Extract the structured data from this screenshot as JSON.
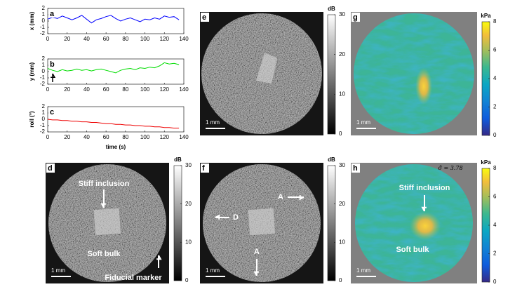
{
  "chart_data": [
    {
      "type": "line",
      "panel_label": "a",
      "y_label": "x (mm)",
      "x": [
        0,
        5,
        10,
        15,
        20,
        25,
        30,
        35,
        40,
        45,
        50,
        55,
        60,
        65,
        70,
        75,
        80,
        85,
        90,
        95,
        100,
        105,
        110,
        115,
        120,
        125,
        130,
        135
      ],
      "series": [
        {
          "color": "#0000ff",
          "values": [
            0.3,
            0.6,
            0.4,
            0.8,
            0.5,
            0.2,
            0.5,
            0.9,
            0.3,
            -0.3,
            0.2,
            0.4,
            0.7,
            0.9,
            0.4,
            0,
            0.3,
            0.5,
            0.2,
            -0.1,
            0.3,
            0.2,
            0.5,
            0.3,
            0.8,
            0.6,
            0.7,
            0.2
          ]
        }
      ],
      "xlim": [
        0,
        140
      ],
      "xticks": [
        0,
        20,
        40,
        60,
        80,
        100,
        120,
        140
      ],
      "ylim": [
        -2,
        2
      ],
      "yticks": [
        -2,
        -1,
        0,
        1,
        2
      ]
    },
    {
      "type": "line",
      "panel_label": "b",
      "y_label": "y (mm)",
      "x": [
        0,
        5,
        10,
        15,
        20,
        25,
        30,
        35,
        40,
        45,
        50,
        55,
        60,
        65,
        70,
        75,
        80,
        85,
        90,
        95,
        100,
        105,
        110,
        115,
        120,
        125,
        130,
        135
      ],
      "series": [
        {
          "color": "#00dd00",
          "values": [
            0.5,
            0.2,
            0,
            0.3,
            0.1,
            0.2,
            0.4,
            0.2,
            0.3,
            0.1,
            0.3,
            0.4,
            0.2,
            0,
            -0.2,
            0.2,
            0.4,
            0.5,
            0.3,
            0.6,
            0.5,
            0.7,
            0.6,
            0.9,
            1.4,
            1.2,
            1.3,
            1.1
          ]
        }
      ],
      "xlim": [
        0,
        140
      ],
      "xticks": [
        0,
        20,
        40,
        60,
        80,
        100,
        120,
        140
      ],
      "ylim": [
        -2,
        2
      ],
      "yticks": [
        -2,
        -1,
        0,
        1,
        2
      ]
    },
    {
      "type": "line",
      "panel_label": "c",
      "y_label": "roll (°)",
      "x_label": "time (s)",
      "x": [
        0,
        5,
        10,
        15,
        20,
        25,
        30,
        35,
        40,
        45,
        50,
        55,
        60,
        65,
        70,
        75,
        80,
        85,
        90,
        95,
        100,
        105,
        110,
        115,
        120,
        125,
        130,
        135
      ],
      "series": [
        {
          "color": "#ee0000",
          "values": [
            0,
            -0.1,
            -0.1,
            -0.2,
            -0.2,
            -0.3,
            -0.3,
            -0.4,
            -0.4,
            -0.5,
            -0.5,
            -0.6,
            -0.7,
            -0.7,
            -0.8,
            -0.8,
            -0.9,
            -0.9,
            -1,
            -1,
            -1.1,
            -1.1,
            -1.2,
            -1.2,
            -1.3,
            -1.3,
            -1.4,
            -1.4
          ]
        }
      ],
      "xlim": [
        0,
        140
      ],
      "xticks": [
        0,
        20,
        40,
        60,
        80,
        100,
        120,
        140
      ],
      "ylim": [
        -2,
        2
      ],
      "yticks": [
        -2,
        -1,
        0,
        1,
        2
      ]
    }
  ],
  "image_panels": [
    {
      "label": "d",
      "kind": "bmode",
      "colorbar": {
        "unit": "dB",
        "lim": [
          0,
          30
        ],
        "ticks": [
          0,
          10,
          20,
          30
        ]
      },
      "scale_bar": "1 mm",
      "annotations": [
        "Stiff inclusion",
        "Soft bulk",
        "Fiducial marker"
      ]
    },
    {
      "label": "e",
      "kind": "bmode",
      "colorbar": {
        "unit": "dB",
        "lim": [
          0,
          30
        ],
        "ticks": [
          0,
          10,
          20,
          30
        ]
      },
      "scale_bar": "1 mm"
    },
    {
      "label": "f",
      "kind": "bmode",
      "colorbar": {
        "unit": "dB",
        "lim": [
          0,
          30
        ],
        "ticks": [
          0,
          10,
          20,
          30
        ]
      },
      "scale_bar": "1 mm",
      "annotations": [
        "A",
        "D",
        "A"
      ]
    },
    {
      "label": "g",
      "kind": "elasto",
      "colorbar": {
        "unit": "kPa",
        "lim": [
          0,
          8
        ],
        "ticks": [
          0,
          2,
          4,
          6,
          8
        ]
      },
      "scale_bar": "1 mm"
    },
    {
      "label": "h",
      "kind": "elasto",
      "colorbar": {
        "unit": "kPa",
        "lim": [
          0,
          8
        ],
        "ticks": [
          0,
          2,
          4,
          6,
          8
        ]
      },
      "scale_bar": "1 mm",
      "annotations": [
        "Stiff inclusion",
        "Soft bulk",
        "σ̄ = 3.78"
      ]
    }
  ]
}
